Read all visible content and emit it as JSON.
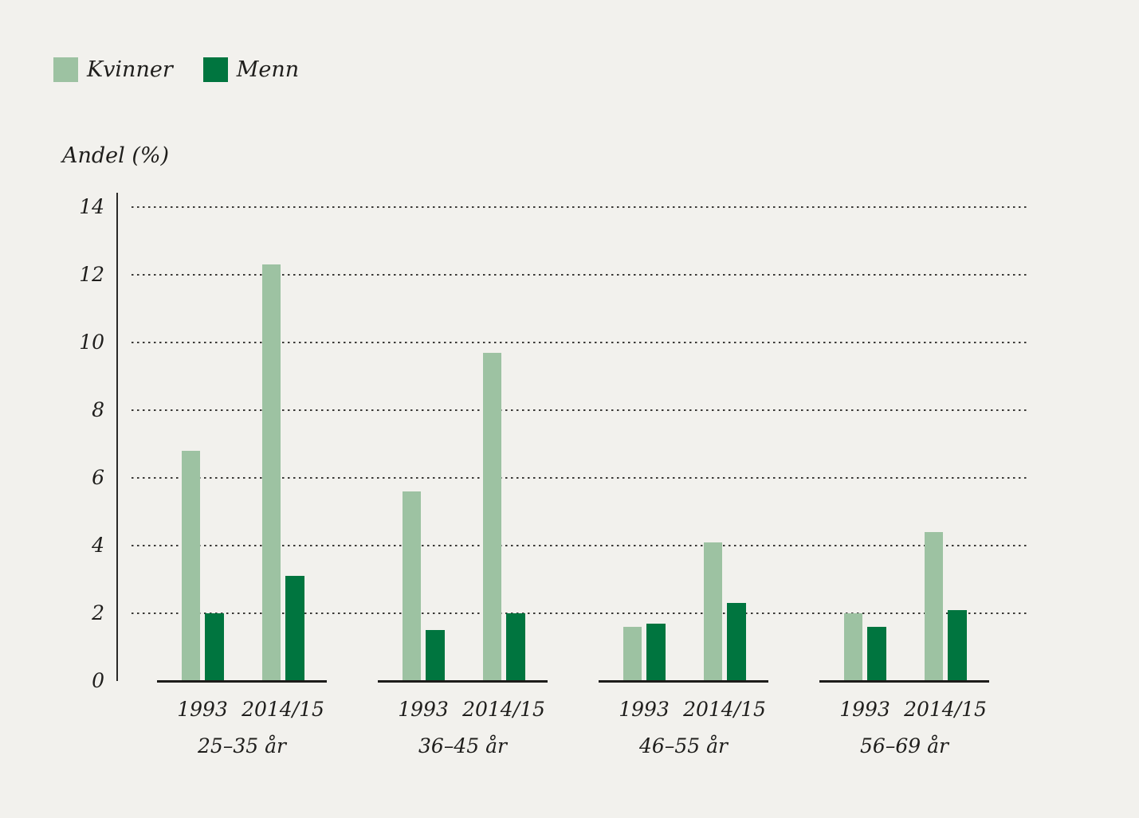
{
  "page": {
    "background_color": "#f2f1ed",
    "text_color": "#1f1e1c",
    "axis_color": "#2a2927"
  },
  "legend": {
    "items": [
      {
        "label": "Kvinner",
        "color": "#9dc2a2"
      },
      {
        "label": "Menn",
        "color": "#00753f"
      }
    ]
  },
  "chart_data": {
    "type": "bar",
    "title": "",
    "ylabel": "Andel (%)",
    "xlabel": "",
    "ylim": [
      0,
      14
    ],
    "yticks": [
      0,
      2,
      4,
      6,
      8,
      10,
      12,
      14
    ],
    "grid": "horizontal-dotted",
    "legend_position": "top-left",
    "groups": [
      "25–35 år",
      "36–45 år",
      "46–55 år",
      "56–69 år"
    ],
    "subcategories": [
      "1993",
      "2014/15"
    ],
    "series": [
      {
        "name": "Kvinner",
        "color": "#9dc2a2",
        "values": [
          [
            6.8,
            12.3
          ],
          [
            5.6,
            9.7
          ],
          [
            1.6,
            4.1
          ],
          [
            2.0,
            4.4
          ]
        ]
      },
      {
        "name": "Menn",
        "color": "#00753f",
        "values": [
          [
            2.0,
            3.1
          ],
          [
            1.5,
            2.0
          ],
          [
            1.7,
            2.3
          ],
          [
            1.6,
            2.1
          ]
        ]
      }
    ]
  }
}
